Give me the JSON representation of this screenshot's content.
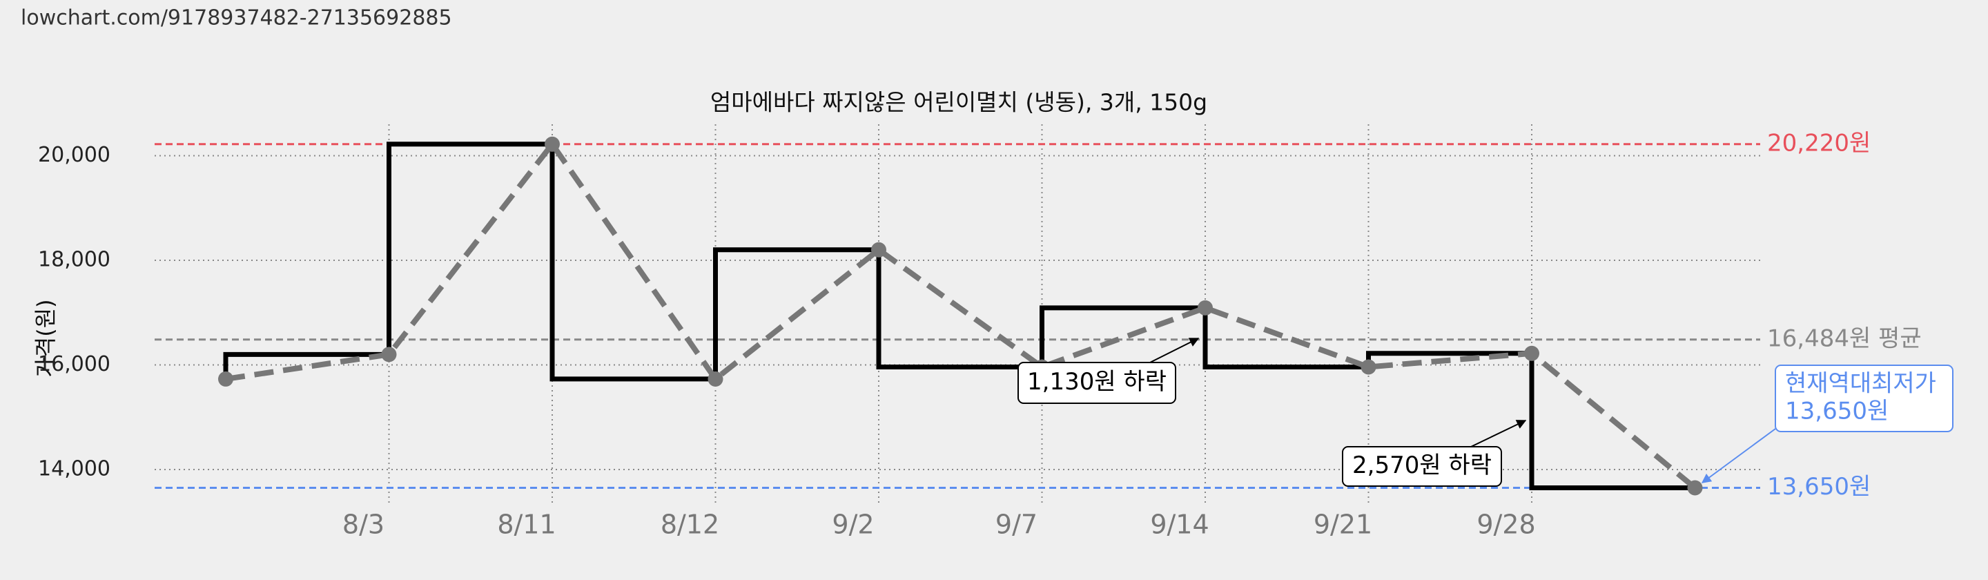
{
  "url": "lowchart.com/9178937482-27135692885",
  "chart_data": {
    "type": "line",
    "title": "엄마에바다 짜지않은 어린이멸치 (냉동), 3개, 150g",
    "y_label": "가격(원)",
    "categories": [
      null,
      "8/3",
      "8/11",
      "8/12",
      "9/2",
      "9/7",
      "9/14",
      "9/21",
      "9/28",
      null
    ],
    "series": [
      {
        "color": "#000000",
        "point_color": "#777777",
        "values": [
          15730,
          16200,
          20220,
          15730,
          18200,
          15960,
          17090,
          15960,
          16220,
          13650
        ]
      }
    ],
    "ylim": [
      13300,
      20600
    ],
    "yticks": [
      {
        "value": 14000,
        "label": "14,000"
      },
      {
        "value": 16000,
        "label": "16,000"
      },
      {
        "value": 18000,
        "label": "18,000"
      },
      {
        "value": 20000,
        "label": "20,000"
      }
    ],
    "grid": true,
    "reference_lines": [
      {
        "value": 20220,
        "label": "20,220원",
        "color": "#e8505b"
      },
      {
        "value": 16484,
        "label": "16,484원 평균",
        "color": "#888888"
      },
      {
        "value": 13650,
        "label": "13,650원",
        "color": "#5b8def"
      }
    ],
    "annotations": [
      {
        "text": [
          "1,130원 하락"
        ],
        "color": "#000000"
      },
      {
        "text": [
          "2,570원 하락"
        ],
        "color": "#000000"
      },
      {
        "text": [
          "현재역대최저가",
          "13,650원"
        ],
        "color": "#5b8def"
      }
    ]
  }
}
